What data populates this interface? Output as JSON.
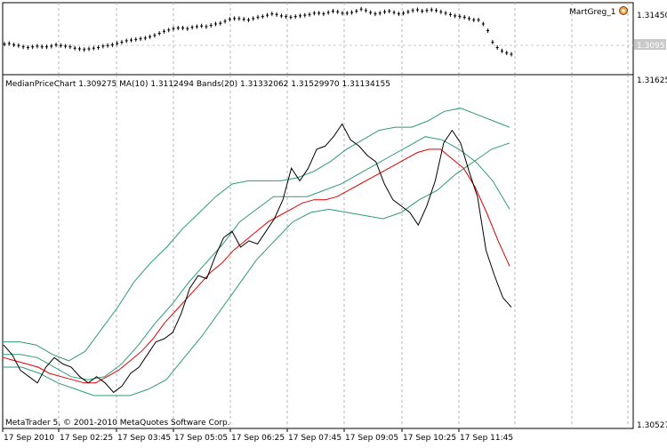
{
  "chart_data": [
    {
      "type": "bar",
      "panel": "top",
      "indicator_label": "MartGreg_1",
      "price_labels": [
        "1.31450",
        "1.30951"
      ],
      "current_price": "1.30951",
      "ylim": [
        1.3065,
        1.316
      ],
      "values": [
        1.3105,
        1.3106,
        1.3104,
        1.3103,
        1.3101,
        1.31,
        1.3101,
        1.3102,
        1.3101,
        1.3101,
        1.3102,
        1.3104,
        1.3103,
        1.3102,
        1.3101,
        1.3099,
        1.3098,
        1.3097,
        1.3098,
        1.3099,
        1.31,
        1.3102,
        1.3103,
        1.3104,
        1.3106,
        1.3108,
        1.311,
        1.3111,
        1.3112,
        1.3113,
        1.3114,
        1.3116,
        1.3118,
        1.3121,
        1.3124,
        1.3126,
        1.3128,
        1.3129,
        1.3129,
        1.3128,
        1.313,
        1.3131,
        1.3132,
        1.3131,
        1.3133,
        1.3135,
        1.3136,
        1.3139,
        1.3142,
        1.3143,
        1.3143,
        1.3142,
        1.3141,
        1.3143,
        1.3145,
        1.3146,
        1.3148,
        1.315,
        1.3149,
        1.3147,
        1.3146,
        1.3145,
        1.3146,
        1.3147,
        1.3148,
        1.3149,
        1.3151,
        1.3151,
        1.315,
        1.3152,
        1.3154,
        1.3153,
        1.3151,
        1.3151,
        1.3152,
        1.3154,
        1.3157,
        1.3155,
        1.3152,
        1.315,
        1.3151,
        1.3153,
        1.3154,
        1.3152,
        1.315,
        1.3151,
        1.3153,
        1.3155,
        1.3156,
        1.3154,
        1.3155,
        1.3156,
        1.3155,
        1.3153,
        1.3151,
        1.3149,
        1.3147,
        1.3146,
        1.3145,
        1.3143,
        1.3141,
        1.3141,
        1.3135,
        1.3125,
        1.3108,
        1.31,
        1.3095,
        1.3092,
        1.309
      ]
    },
    {
      "type": "line",
      "panel": "main",
      "title": "MedianPriceChart 1.309275 MA(10) 1.3112494 Bands(20) 1.31332062 1.31529970 1.31134155",
      "price_labels": [
        "1.31625",
        "1.30527"
      ],
      "ylim": [
        1.30527,
        1.31625
      ],
      "x_tick_labels": [
        "17 Sep 2010",
        "17 Sep 02:25",
        "17 Sep 03:45",
        "17 Sep 05:05",
        "17 Sep 06:25",
        "17 Sep 07:45",
        "17 Sep 09:05",
        "17 Sep 10:25",
        "17 Sep 11:45"
      ],
      "footer": "MetaTrader 5, © 2001-2010 MetaQuotes Software Corp.",
      "series": [
        {
          "color": "#000000",
          "values": [
            1.3078,
            1.3075,
            1.307,
            1.3068,
            1.3066,
            1.3071,
            1.3074,
            1.3072,
            1.3071,
            1.3068,
            1.3066,
            1.3068,
            1.3066,
            1.3063,
            1.3065,
            1.3069,
            1.3071,
            1.3075,
            1.3079,
            1.308,
            1.3082,
            1.3088,
            1.3096,
            1.31,
            1.3099,
            1.3106,
            1.3112,
            1.3114,
            1.3109,
            1.3111,
            1.311,
            1.3114,
            1.3118,
            1.3124,
            1.3134,
            1.313,
            1.3134,
            1.314,
            1.3141,
            1.3144,
            1.3148,
            1.3143,
            1.3141,
            1.3138,
            1.3136,
            1.3129,
            1.3124,
            1.3122,
            1.312,
            1.3116,
            1.3122,
            1.313,
            1.3142,
            1.3146,
            1.3142,
            1.3133,
            1.3125,
            1.3108,
            1.31,
            1.3093,
            1.309
          ]
        },
        {
          "color": "#e00000",
          "values": [
            1.3074,
            1.3073,
            1.3072,
            1.3071,
            1.3069,
            1.3068,
            1.3067,
            1.3066,
            1.3066,
            1.3068,
            1.307,
            1.3073,
            1.3076,
            1.308,
            1.3085,
            1.3089,
            1.3093,
            1.3097,
            1.3101,
            1.3104,
            1.3108,
            1.3111,
            1.3114,
            1.3117,
            1.3119,
            1.3121,
            1.3123,
            1.3124,
            1.3124,
            1.3125,
            1.3127,
            1.3129,
            1.3131,
            1.3133,
            1.3135,
            1.3137,
            1.3139,
            1.314,
            1.314,
            1.3137,
            1.3134,
            1.3128,
            1.312,
            1.3111,
            1.3103
          ]
        },
        {
          "color": "#2e9a78",
          "values": [
            1.3079,
            1.3079,
            1.3078,
            1.3075,
            1.3073,
            1.3076,
            1.3083,
            1.309,
            1.3098,
            1.3104,
            1.3109,
            1.3115,
            1.312,
            1.3125,
            1.3129,
            1.313,
            1.313,
            1.313,
            1.3131,
            1.3133,
            1.3136,
            1.314,
            1.3143,
            1.3146,
            1.3147,
            1.3147,
            1.3149,
            1.3152,
            1.3153,
            1.3151,
            1.3149,
            1.3147
          ]
        },
        {
          "color": "#2e9a78",
          "values": [
            1.3075,
            1.3075,
            1.3074,
            1.3071,
            1.3068,
            1.3067,
            1.3068,
            1.3072,
            1.3078,
            1.3085,
            1.3091,
            1.3098,
            1.3104,
            1.311,
            1.3117,
            1.3121,
            1.3125,
            1.3125,
            1.3125,
            1.3127,
            1.3129,
            1.3132,
            1.3135,
            1.3138,
            1.3141,
            1.3144,
            1.3143,
            1.314,
            1.3136,
            1.313,
            1.3121
          ]
        },
        {
          "color": "#2e9a78",
          "values": [
            1.3071,
            1.3071,
            1.3069,
            1.3066,
            1.3064,
            1.3062,
            1.3062,
            1.3062,
            1.3064,
            1.3067,
            1.3074,
            1.3081,
            1.3089,
            1.3097,
            1.3105,
            1.3111,
            1.3117,
            1.312,
            1.3121,
            1.312,
            1.3119,
            1.3118,
            1.312,
            1.3124,
            1.3127,
            1.3132,
            1.3136,
            1.314,
            1.3142
          ]
        }
      ]
    }
  ]
}
